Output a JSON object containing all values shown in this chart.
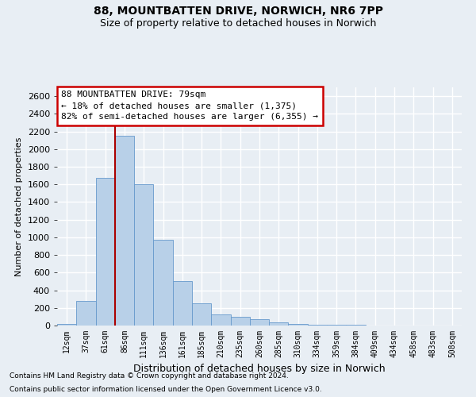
{
  "title1": "88, MOUNTBATTEN DRIVE, NORWICH, NR6 7PP",
  "title2": "Size of property relative to detached houses in Norwich",
  "xlabel": "Distribution of detached houses by size in Norwich",
  "ylabel": "Number of detached properties",
  "categories": [
    "12sqm",
    "37sqm",
    "61sqm",
    "86sqm",
    "111sqm",
    "136sqm",
    "161sqm",
    "185sqm",
    "210sqm",
    "235sqm",
    "260sqm",
    "285sqm",
    "310sqm",
    "334sqm",
    "359sqm",
    "384sqm",
    "409sqm",
    "434sqm",
    "458sqm",
    "483sqm",
    "508sqm"
  ],
  "values": [
    20,
    275,
    1675,
    2150,
    1600,
    975,
    500,
    250,
    130,
    100,
    75,
    35,
    20,
    10,
    5,
    5,
    3,
    2,
    2,
    2,
    2
  ],
  "bar_color": "#b8d0e8",
  "bar_edge_color": "#6699cc",
  "vline_color": "#aa0000",
  "vline_bar_index": 3,
  "ylim": [
    0,
    2700
  ],
  "yticks": [
    0,
    200,
    400,
    600,
    800,
    1000,
    1200,
    1400,
    1600,
    1800,
    2000,
    2200,
    2400,
    2600
  ],
  "annotation_line1": "88 MOUNTBATTEN DRIVE: 79sqm",
  "annotation_line2": "← 18% of detached houses are smaller (1,375)",
  "annotation_line3": "82% of semi-detached houses are larger (6,355) →",
  "annotation_box_facecolor": "#ffffff",
  "annotation_box_edgecolor": "#cc0000",
  "footer1": "Contains HM Land Registry data © Crown copyright and database right 2024.",
  "footer2": "Contains public sector information licensed under the Open Government Licence v3.0.",
  "bg_color": "#e8eef4",
  "grid_color": "#ffffff",
  "title1_fontsize": 10,
  "title2_fontsize": 9,
  "ylabel_fontsize": 8,
  "xlabel_fontsize": 9
}
